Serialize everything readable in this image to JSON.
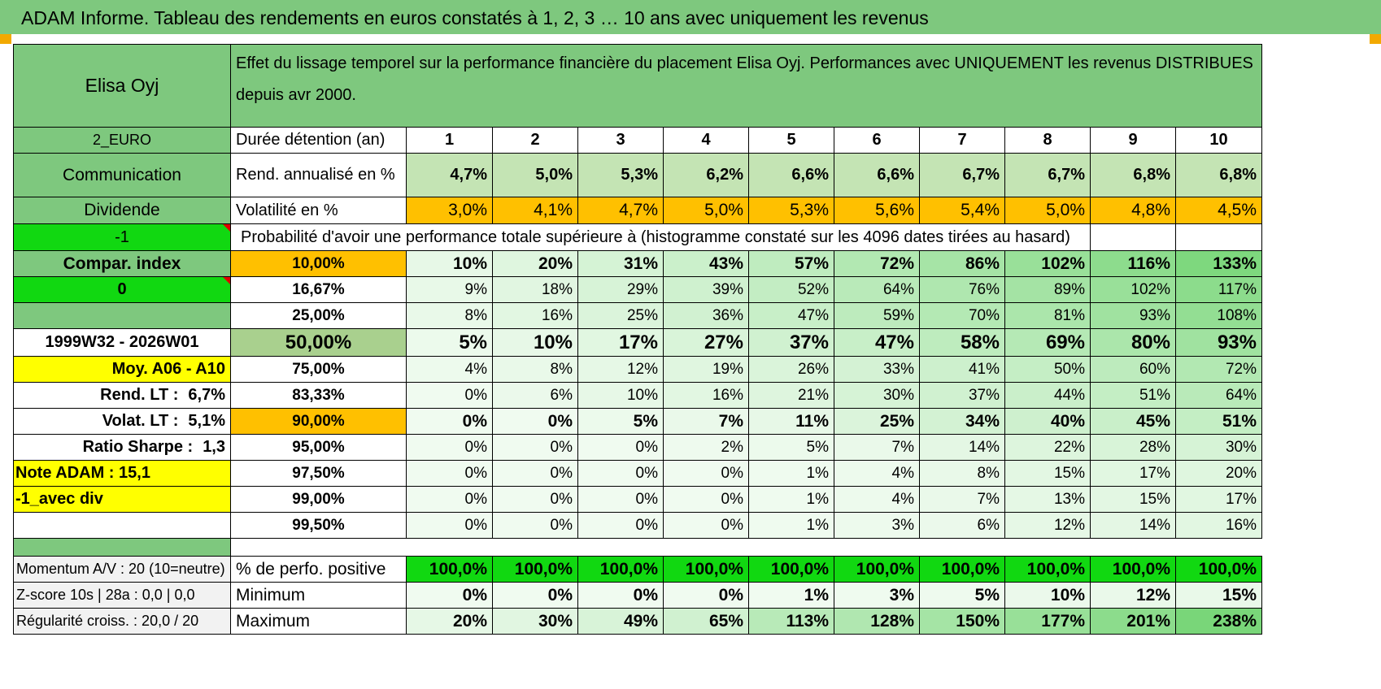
{
  "header": {
    "title": "ADAM Informe. Tableau des rendements en euros constatés à 1, 2, 3 … 10 ans avec uniquement les revenus"
  },
  "sidebar": {
    "name": "Elisa Oyj",
    "currency": "2_EURO",
    "sector": "Communication",
    "type": "Dividende",
    "flag1": "-1",
    "compar_label": "Compar. index",
    "flag2": "0",
    "blank": "",
    "period": "1999W32 - 2026W01",
    "avg": "Moy. A06 - A10",
    "rend_lt_label": "Rend. LT :",
    "rend_lt_value": "6,7%",
    "volat_lt_label": "Volat. LT :",
    "volat_lt_value": "5,1%",
    "sharpe_label": "Ratio Sharpe :",
    "sharpe_value": "1,3",
    "note": "Note ADAM : 15,1",
    "mode": "-1_avec div",
    "momentum": "Momentum A/V : 20 (10=neutre)",
    "zscore": "Z-score 10s | 28a : 0,0 | 0,0",
    "regularite": "Régularité croiss. : 20,0 / 20"
  },
  "main": {
    "description": "Effet du lissage temporel sur la performance financière du placement Elisa Oyj. Performances avec UNIQUEMENT les revenus DISTRIBUES depuis avr 2000.",
    "duration_label": "Durée détention (an)",
    "years": [
      "1",
      "2",
      "3",
      "4",
      "5",
      "6",
      "7",
      "8",
      "9",
      "10"
    ],
    "rend_label": "Rend. annualisé en %",
    "rend_values": [
      "4,7%",
      "5,0%",
      "5,3%",
      "6,2%",
      "6,6%",
      "6,6%",
      "6,7%",
      "6,7%",
      "6,8%",
      "6,8%"
    ],
    "vol_label": "Volatilité en %",
    "vol_values": [
      "3,0%",
      "4,1%",
      "4,7%",
      "5,0%",
      "5,3%",
      "5,6%",
      "5,4%",
      "5,0%",
      "4,8%",
      "4,5%"
    ],
    "prob_title": "Probabilité d'avoir une performance totale supérieure à (histogramme constaté sur les 4096 dates tirées au hasard)",
    "prob_rows": [
      {
        "pct": "10,00%",
        "values": [
          "10%",
          "20%",
          "31%",
          "43%",
          "57%",
          "72%",
          "86%",
          "102%",
          "116%",
          "133%"
        ]
      },
      {
        "pct": "16,67%",
        "values": [
          "9%",
          "18%",
          "29%",
          "39%",
          "52%",
          "64%",
          "76%",
          "89%",
          "102%",
          "117%"
        ]
      },
      {
        "pct": "25,00%",
        "values": [
          "8%",
          "16%",
          "25%",
          "36%",
          "47%",
          "59%",
          "70%",
          "81%",
          "93%",
          "108%"
        ]
      },
      {
        "pct": "50,00%",
        "values": [
          "5%",
          "10%",
          "17%",
          "27%",
          "37%",
          "47%",
          "58%",
          "69%",
          "80%",
          "93%"
        ]
      },
      {
        "pct": "75,00%",
        "values": [
          "4%",
          "8%",
          "12%",
          "19%",
          "26%",
          "33%",
          "41%",
          "50%",
          "60%",
          "72%"
        ]
      },
      {
        "pct": "83,33%",
        "values": [
          "0%",
          "6%",
          "10%",
          "16%",
          "21%",
          "30%",
          "37%",
          "44%",
          "51%",
          "64%"
        ]
      },
      {
        "pct": "90,00%",
        "values": [
          "0%",
          "0%",
          "5%",
          "7%",
          "11%",
          "25%",
          "34%",
          "40%",
          "45%",
          "51%"
        ]
      },
      {
        "pct": "95,00%",
        "values": [
          "0%",
          "0%",
          "0%",
          "2%",
          "5%",
          "7%",
          "14%",
          "22%",
          "28%",
          "30%"
        ]
      },
      {
        "pct": "97,50%",
        "values": [
          "0%",
          "0%",
          "0%",
          "0%",
          "1%",
          "4%",
          "8%",
          "15%",
          "17%",
          "20%"
        ]
      },
      {
        "pct": "99,00%",
        "values": [
          "0%",
          "0%",
          "0%",
          "0%",
          "1%",
          "4%",
          "7%",
          "13%",
          "15%",
          "17%"
        ]
      },
      {
        "pct": "99,50%",
        "values": [
          "0%",
          "0%",
          "0%",
          "0%",
          "1%",
          "3%",
          "6%",
          "12%",
          "14%",
          "16%"
        ]
      }
    ],
    "pos_label": "% de perfo. positive",
    "pos_values": [
      "100,0%",
      "100,0%",
      "100,0%",
      "100,0%",
      "100,0%",
      "100,0%",
      "100,0%",
      "100,0%",
      "100,0%",
      "100,0%"
    ],
    "min_label": "Minimum",
    "min_values": [
      "0%",
      "0%",
      "0%",
      "0%",
      "1%",
      "3%",
      "5%",
      "10%",
      "12%",
      "15%"
    ],
    "max_label": "Maximum",
    "max_values": [
      "20%",
      "30%",
      "49%",
      "65%",
      "113%",
      "128%",
      "150%",
      "177%",
      "201%",
      "238%"
    ]
  },
  "colors": {
    "green_header": "#7ec87e",
    "lime": "#11d811",
    "orange": "#ffc000",
    "yellow": "#ffff00",
    "red_text": "#e00000"
  }
}
